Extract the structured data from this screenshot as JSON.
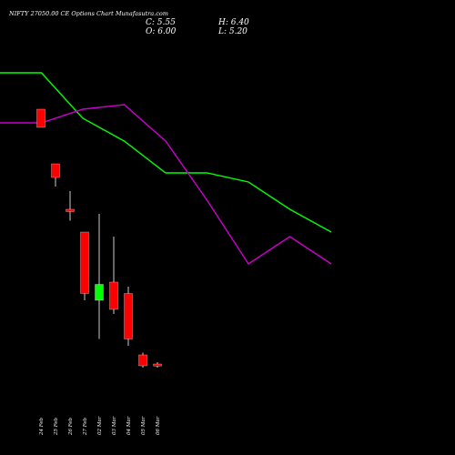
{
  "chart_data": {
    "type": "candlestick",
    "title": "NIFTY 27050.00 CE Options Chart Munafasutra.com",
    "ohlc": {
      "close_label": "C: 5.55",
      "open_label": "O: 6.00",
      "high_label": "H: 6.40",
      "low_label": "L: 5.20"
    },
    "categories": [
      "24 Feb",
      "25 Feb",
      "26 Feb",
      "27 Feb",
      "02 Mar",
      "03 Mar",
      "04 Mar",
      "05 Mar",
      "06 Mar"
    ],
    "candles": [
      {
        "label": "24 Feb",
        "open": 62.0,
        "high": 62.0,
        "low": 58.0,
        "close": 58.0
      },
      {
        "label": "25 Feb",
        "open": 50.0,
        "high": 50.0,
        "low": 45.0,
        "close": 47.0
      },
      {
        "label": "26 Feb",
        "open": 40.0,
        "high": 44.0,
        "low": 37.5,
        "close": 39.5
      },
      {
        "label": "27 Feb",
        "open": 35.0,
        "high": 35.0,
        "low": 20.0,
        "close": 21.5
      },
      {
        "label": "02 Mar",
        "open": 20.0,
        "high": 39.0,
        "low": 11.5,
        "close": 23.5
      },
      {
        "label": "03 Mar",
        "open": 24.0,
        "high": 34.0,
        "low": 17.0,
        "close": 18.0
      },
      {
        "label": "04 Mar",
        "open": 21.5,
        "high": 23.0,
        "low": 10.0,
        "close": 11.5
      },
      {
        "label": "05 Mar",
        "open": 8.0,
        "high": 8.5,
        "low": 5.2,
        "close": 5.6
      },
      {
        "label": "06 Mar",
        "open": 6.0,
        "high": 6.4,
        "low": 5.2,
        "close": 5.55
      }
    ],
    "ylim": [
      0,
      76
    ],
    "overlays": [
      {
        "color": "#00ff00",
        "x": [
          "21 Feb",
          "24 Feb",
          "27 Feb",
          "03 Mar",
          "06 Mar",
          "09 Mar",
          "12 Mar",
          "15 Mar",
          "18 Mar"
        ],
        "values": [
          70,
          70,
          60,
          55,
          48,
          48,
          46,
          40,
          35
        ]
      },
      {
        "color": "#cc00cc",
        "x": [
          "21 Feb",
          "24 Feb",
          "27 Feb",
          "03 Mar",
          "06 Mar",
          "09 Mar",
          "12 Mar",
          "15 Mar",
          "18 Mar"
        ],
        "values": [
          59,
          59,
          62,
          63,
          55,
          42,
          28,
          34,
          28
        ]
      }
    ],
    "colors": {
      "background": "#000000",
      "up": "#00ff00",
      "down": "#ff0000",
      "wick": "#ffffff",
      "neutral": "#ff6666"
    },
    "grid": false,
    "legend": "none"
  }
}
